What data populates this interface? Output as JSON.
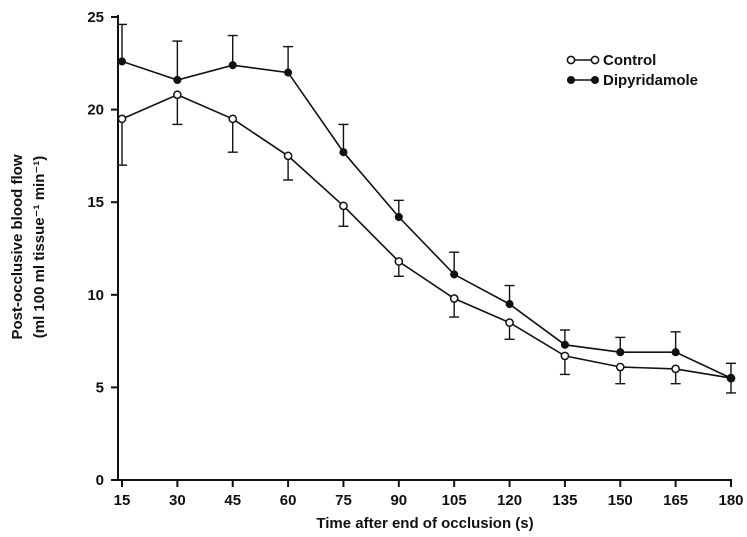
{
  "chart_data": {
    "type": "line",
    "xlabel": "Time after end of occlusion (s)",
    "ylabel_line1": "Post-occlusive blood flow",
    "ylabel_line2": "(ml 100 ml tissue⁻¹ min⁻¹)",
    "x": [
      15,
      30,
      45,
      60,
      75,
      90,
      105,
      120,
      135,
      150,
      165,
      180
    ],
    "xticks": [
      "15",
      "30",
      "45",
      "60",
      "75",
      "90",
      "105",
      "120",
      "135",
      "150",
      "165",
      "180"
    ],
    "yticks": [
      "0",
      "5",
      "10",
      "15",
      "20",
      "25"
    ],
    "ylim": [
      0,
      25
    ],
    "legend_position": "top-right",
    "grid": false,
    "series": [
      {
        "name": "Control",
        "marker": "open-circle",
        "color": "#111111",
        "values": [
          19.5,
          20.8,
          19.5,
          17.5,
          14.8,
          11.8,
          9.8,
          8.5,
          6.7,
          6.1,
          6.0,
          5.5
        ],
        "error": [
          2.5,
          1.6,
          1.8,
          1.3,
          1.1,
          0.8,
          1.0,
          0.9,
          1.0,
          0.9,
          0.8,
          0.8
        ]
      },
      {
        "name": "Dipyridamole",
        "marker": "filled-circle",
        "color": "#111111",
        "values": [
          22.6,
          21.6,
          22.4,
          22.0,
          17.7,
          14.2,
          11.1,
          9.5,
          7.3,
          6.9,
          6.9,
          5.5
        ],
        "error": [
          2.0,
          2.1,
          1.6,
          1.4,
          1.5,
          0.9,
          1.2,
          1.0,
          0.8,
          0.8,
          1.1,
          0.8
        ]
      }
    ]
  }
}
